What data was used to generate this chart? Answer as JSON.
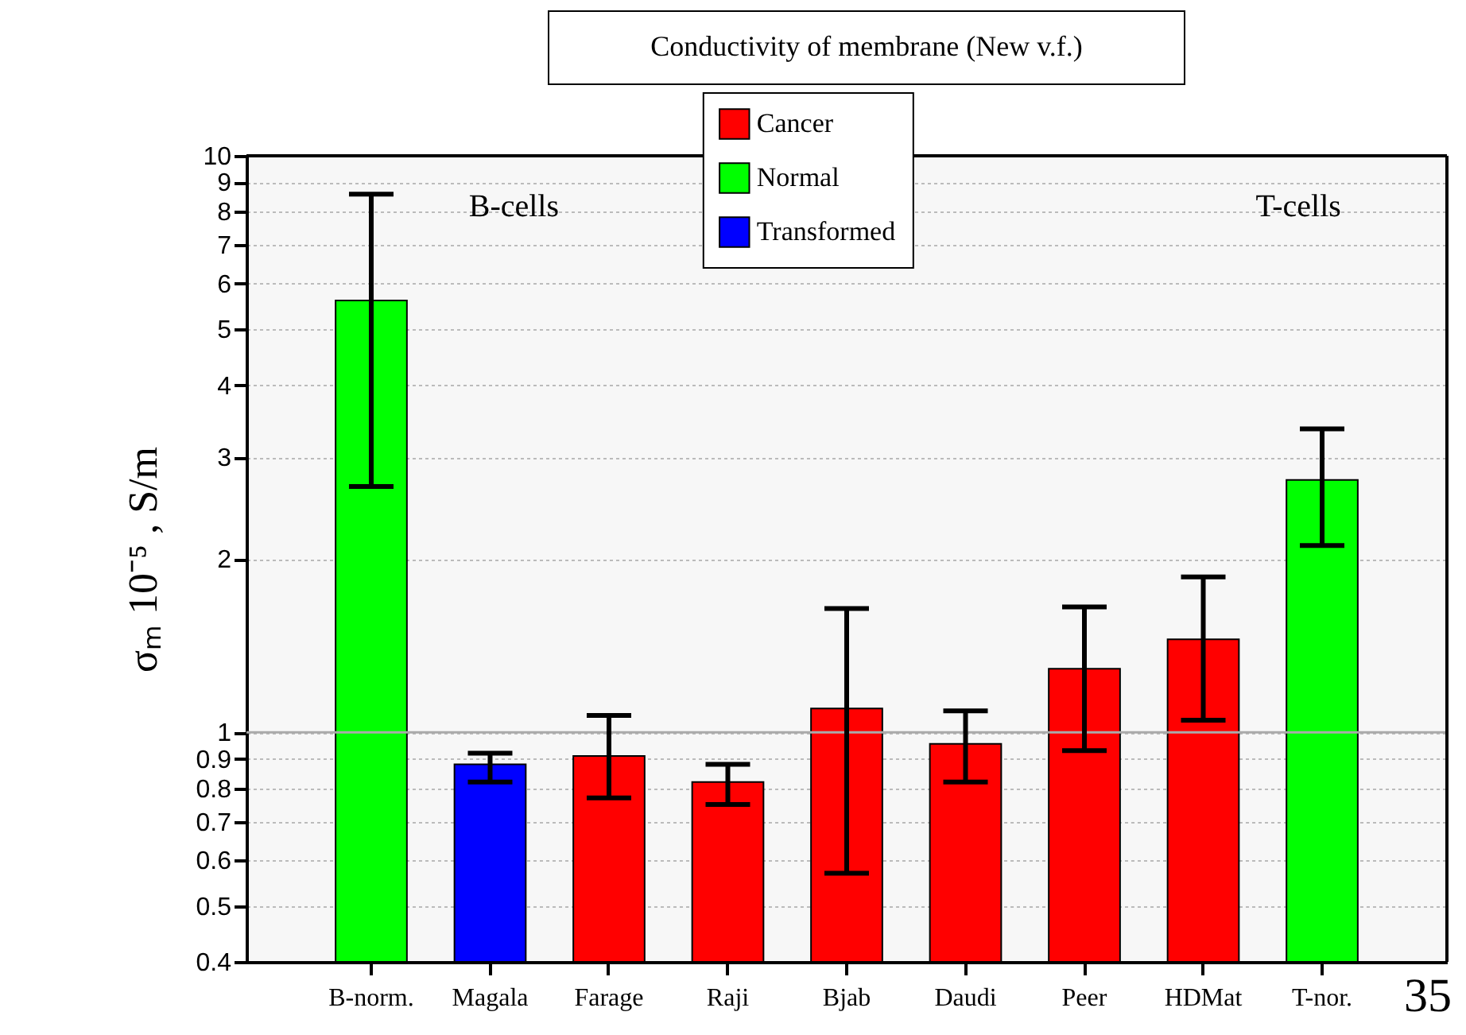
{
  "chart_data": {
    "type": "bar",
    "title": "Conductivity of membrane (New v.f.)",
    "ylabel": "σₘ 10⁻⁵ , S/m",
    "categories": [
      "B-norm.",
      "Magala",
      "Farage",
      "Raji",
      "Bjab",
      "Daudi",
      "Peer",
      "HDMat",
      "T-nor."
    ],
    "series": [
      {
        "name": "Cancer",
        "color": "#ff0000",
        "values": [
          null,
          null,
          0.91,
          0.82,
          1.1,
          0.955,
          1.29,
          1.45,
          null
        ],
        "errors": [
          null,
          null,
          [
            0.77,
            1.07
          ],
          [
            0.75,
            0.88
          ],
          [
            0.57,
            1.64
          ],
          [
            0.82,
            1.09
          ],
          [
            0.93,
            1.65
          ],
          [
            1.05,
            1.86
          ],
          null
        ]
      },
      {
        "name": "Normal",
        "color": "#00ff00",
        "values": [
          5.61,
          null,
          null,
          null,
          null,
          null,
          null,
          null,
          2.74
        ],
        "errors": [
          [
            2.67,
            8.58
          ],
          null,
          null,
          null,
          null,
          null,
          null,
          null,
          [
            2.11,
            3.36
          ]
        ]
      },
      {
        "name": "Transformed",
        "color": "#0000ff",
        "values": [
          null,
          0.88,
          null,
          null,
          null,
          null,
          null,
          null,
          null
        ],
        "errors": [
          null,
          [
            0.82,
            0.92
          ],
          null,
          null,
          null,
          null,
          null,
          null,
          null
        ]
      }
    ],
    "log": true,
    "ylim": [
      0.4,
      10
    ],
    "yticks": [
      0.4,
      0.5,
      0.6,
      0.7,
      0.8,
      0.9,
      1,
      2,
      3,
      4,
      5,
      6,
      7,
      8,
      9,
      10
    ],
    "grid": "y",
    "legend": "top",
    "ref_lines": [
      {
        "axis": "y",
        "value": 1,
        "color": "#aaaaaa",
        "line_style": "solid"
      }
    ],
    "annotations": [
      "B-cells",
      "T-cells",
      "35"
    ]
  }
}
